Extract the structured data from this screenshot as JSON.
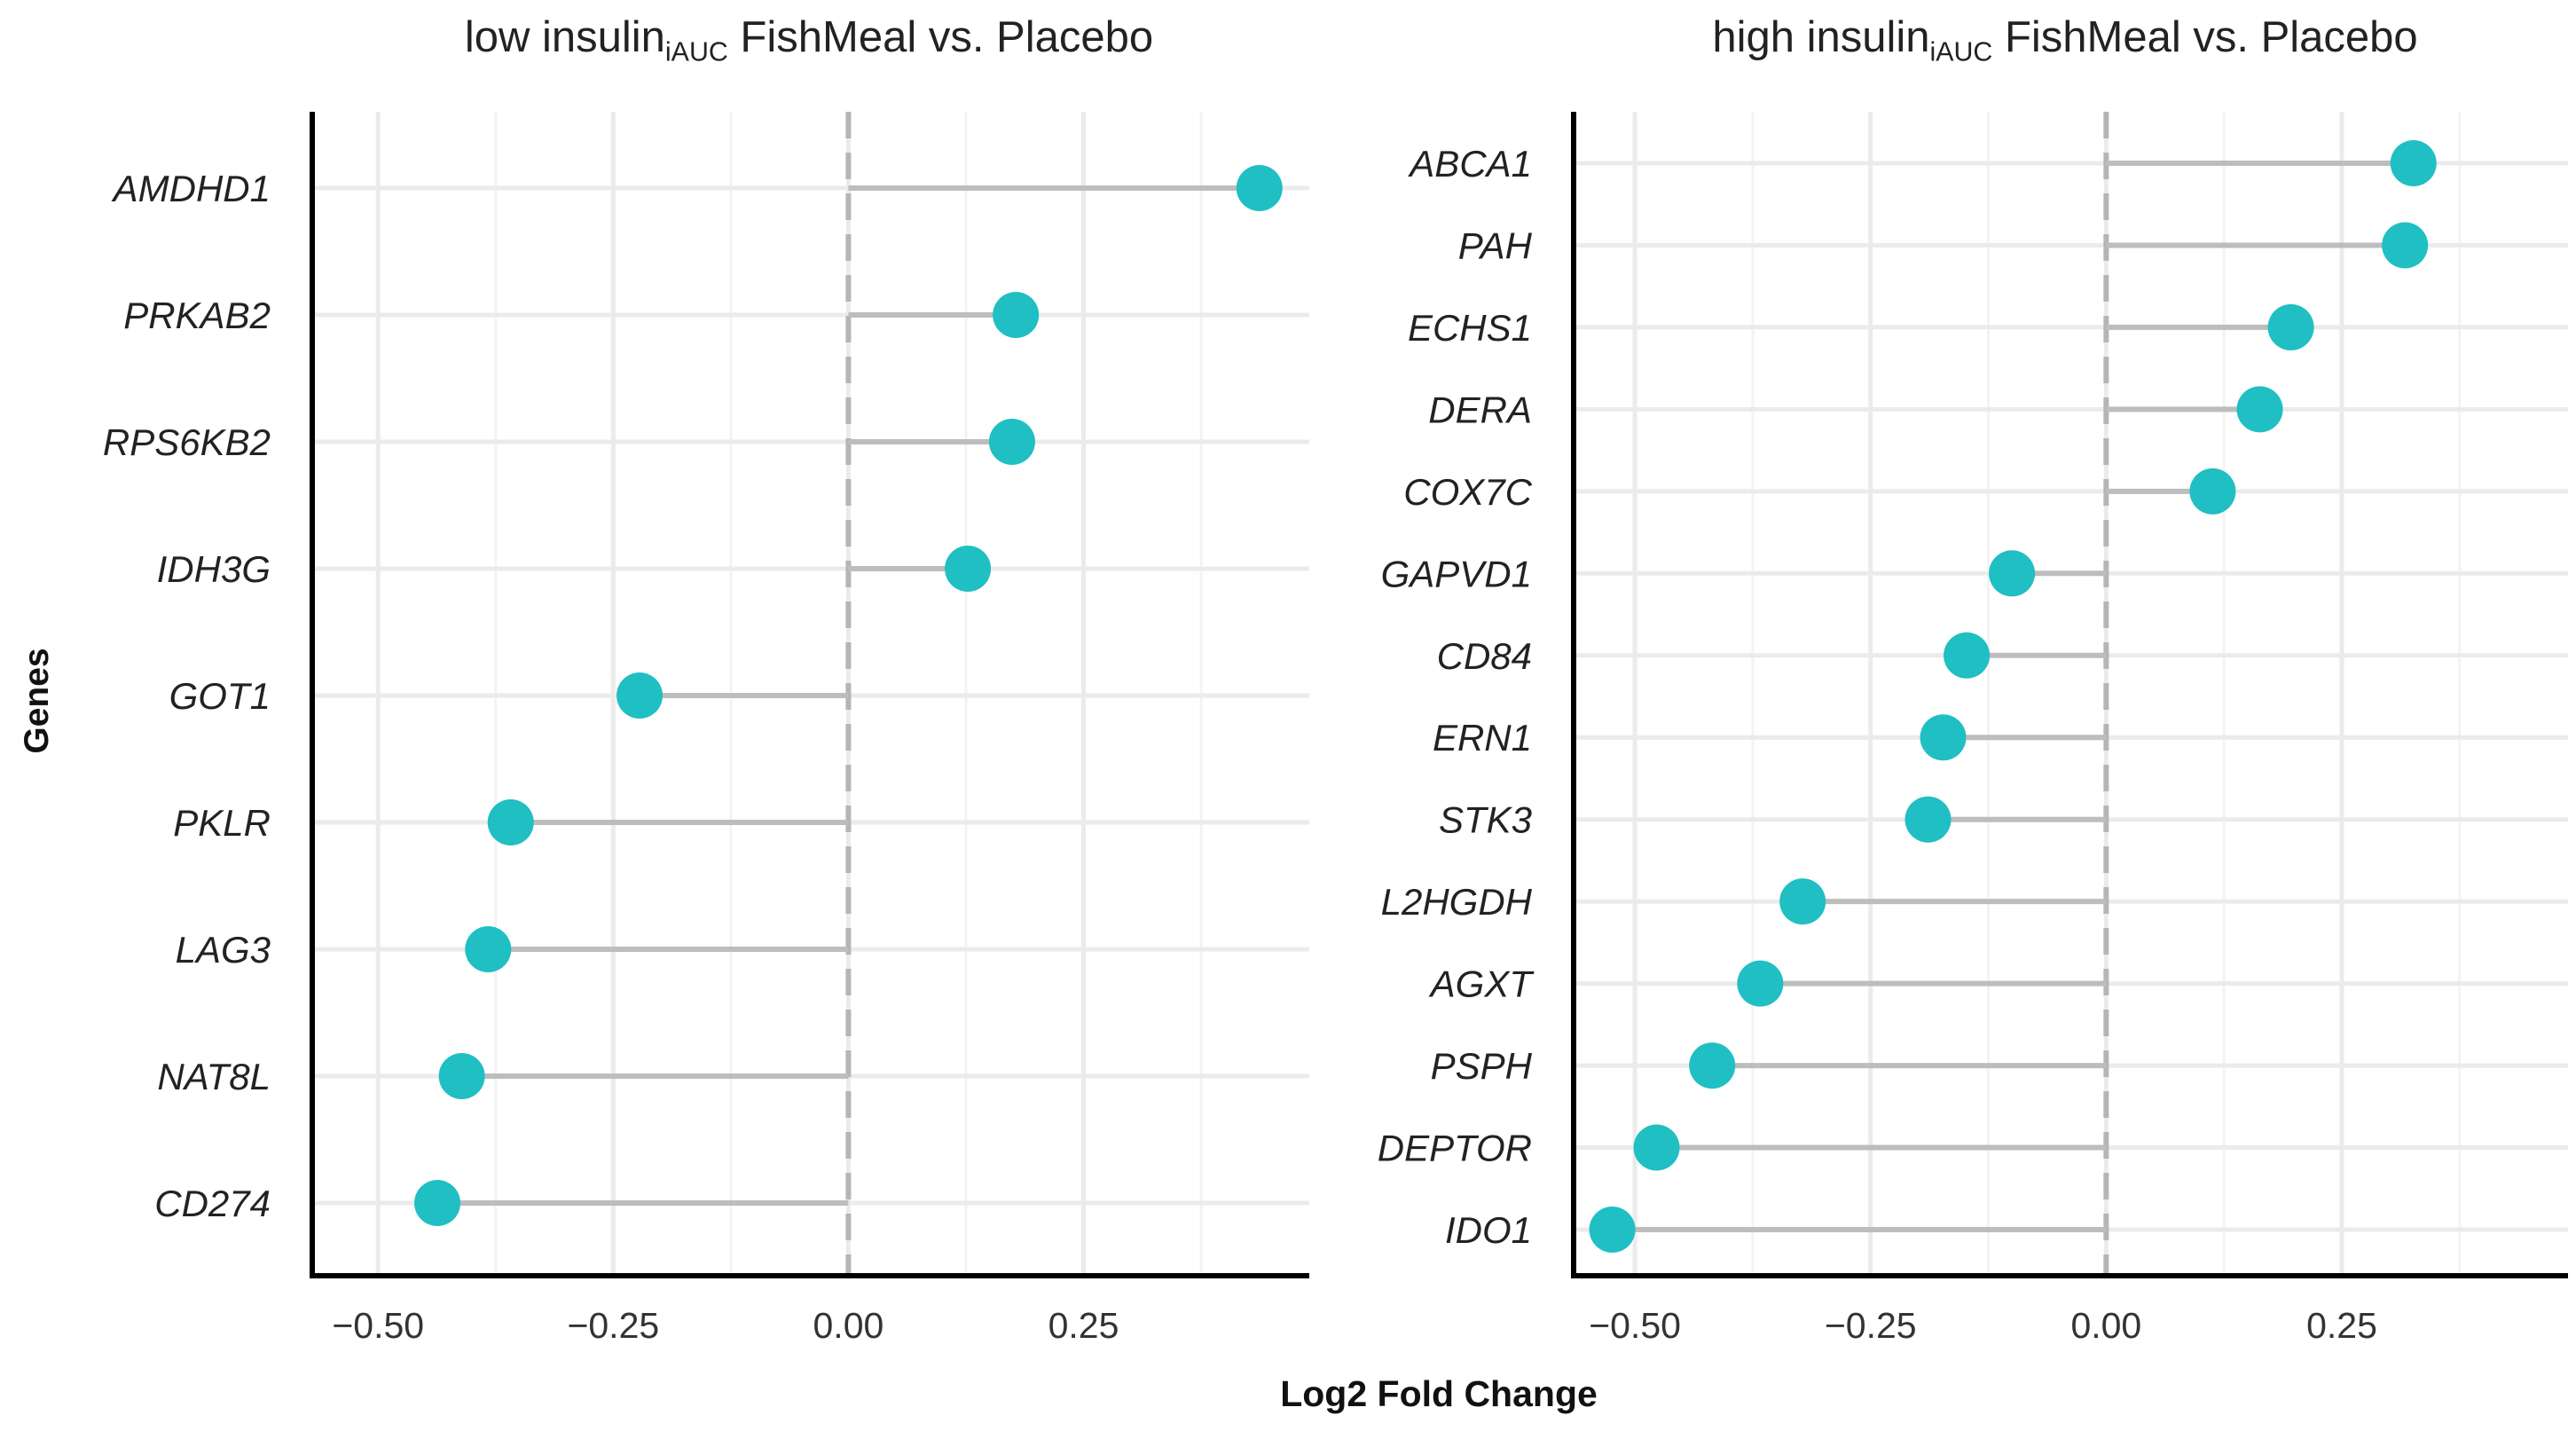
{
  "x_axis_label": "Log2 Fold Change",
  "y_axis_label": "Genes",
  "colors": {
    "point": "#1fbfc3",
    "segment": "#bdbdbd",
    "grid": "#ebebeb",
    "zero": "#b5b5b5",
    "axis": "#000000"
  },
  "chart_data": [
    {
      "type": "lollipop",
      "title_pre": "low insulin",
      "title_sub": "iAUC",
      "title_post": " FishMeal vs. Placebo",
      "xlim": [
        -0.57,
        0.49
      ],
      "xticks": [
        -0.5,
        -0.25,
        0.0,
        0.25
      ],
      "xtick_labels": [
        "−0.50",
        "−0.25",
        "0.00",
        "0.25"
      ],
      "genes": [
        "AMDHD1",
        "PRKAB2",
        "RPS6KB2",
        "IDH3G",
        "GOT1",
        "PKLR",
        "LAG3",
        "NAT8L",
        "CD274"
      ],
      "values": [
        0.437,
        0.178,
        0.174,
        0.127,
        -0.222,
        -0.359,
        -0.383,
        -0.411,
        -0.437
      ]
    },
    {
      "type": "lollipop",
      "title_pre": "high insulin",
      "title_sub": "iAUC",
      "title_post": " FishMeal vs. Placebo",
      "xlim": [
        -0.565,
        0.49
      ],
      "xticks": [
        -0.5,
        -0.25,
        0.0,
        0.25
      ],
      "xtick_labels": [
        "−0.50",
        "−0.25",
        "0.00",
        "0.25"
      ],
      "genes": [
        "ABCA1",
        "PAH",
        "ECHS1",
        "DERA",
        "COX7C",
        "GAPVD1",
        "CD84",
        "ERN1",
        "STK3",
        "L2HGDH",
        "AGXT",
        "PSPH",
        "DEPTOR",
        "IDO1"
      ],
      "values": [
        0.326,
        0.317,
        0.196,
        0.163,
        0.113,
        -0.1,
        -0.148,
        -0.173,
        -0.189,
        -0.322,
        -0.367,
        -0.418,
        -0.477,
        -0.524
      ]
    }
  ]
}
